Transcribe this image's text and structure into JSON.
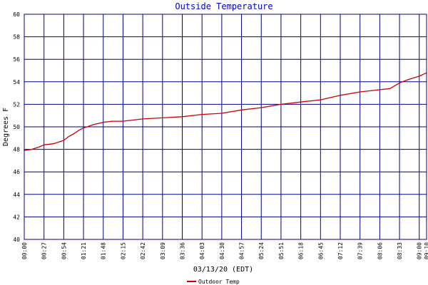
{
  "chart_data": {
    "type": "line",
    "title": "Outside Temperature",
    "xlabel": "03/13/20 (EDT)",
    "ylabel": "Degrees F",
    "ylim": [
      40,
      60
    ],
    "yticks": [
      40,
      42,
      44,
      46,
      48,
      50,
      52,
      54,
      56,
      58,
      60
    ],
    "xlim": [
      "00:00",
      "09:10"
    ],
    "xticks": [
      "00:00",
      "00:27",
      "00:54",
      "01:21",
      "01:48",
      "02:15",
      "02:42",
      "03:09",
      "03:36",
      "04:03",
      "04:30",
      "04:57",
      "05:24",
      "05:51",
      "06:18",
      "06:45",
      "07:12",
      "07:39",
      "08:06",
      "08:33",
      "09:00",
      "09:10"
    ],
    "grid": true,
    "legend": "bottom-center",
    "colors": {
      "title": "#0000c0",
      "grid": "#00007f",
      "series": "#cc0000"
    },
    "series": [
      {
        "name": "Outdoor Temp",
        "x": [
          "00:00",
          "00:10",
          "00:20",
          "00:27",
          "00:40",
          "00:54",
          "01:00",
          "01:08",
          "01:15",
          "01:21",
          "01:35",
          "01:48",
          "02:00",
          "02:15",
          "02:42",
          "03:09",
          "03:36",
          "04:03",
          "04:30",
          "04:57",
          "05:24",
          "05:51",
          "06:18",
          "06:45",
          "07:12",
          "07:39",
          "08:06",
          "08:20",
          "08:33",
          "08:45",
          "09:00",
          "09:10"
        ],
        "values": [
          47.9,
          48.0,
          48.2,
          48.4,
          48.5,
          48.8,
          49.1,
          49.4,
          49.7,
          49.9,
          50.2,
          50.4,
          50.5,
          50.5,
          50.7,
          50.8,
          50.9,
          51.1,
          51.2,
          51.5,
          51.7,
          52.0,
          52.2,
          52.4,
          52.8,
          53.1,
          53.3,
          53.4,
          53.9,
          54.2,
          54.5,
          54.8
        ]
      }
    ]
  }
}
